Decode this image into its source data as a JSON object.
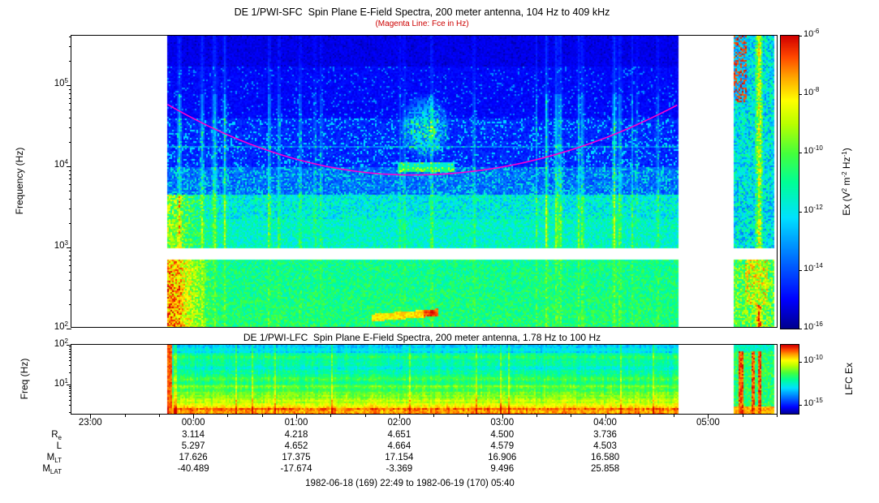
{
  "header": {
    "title": "DE 1/PWI-SFC  Spin Plane E-Field Spectra, 200 meter antenna, 104 Hz to 409 kHz",
    "subtitle": "(Magenta Line: Fce in Hz)"
  },
  "panel_sfc": {
    "ylabel": "Frequency (Hz)",
    "y_ticks": [
      {
        "base": "10",
        "exp": "5"
      },
      {
        "base": "10",
        "exp": "4"
      },
      {
        "base": "10",
        "exp": "3"
      },
      {
        "base": "10",
        "exp": "2"
      }
    ],
    "y_tick_fl": [
      5,
      4,
      3,
      2
    ],
    "colorbar": {
      "ticks": [
        {
          "base": "10",
          "exp": "-6"
        },
        {
          "base": "10",
          "exp": "-8"
        },
        {
          "base": "10",
          "exp": "-10"
        },
        {
          "base": "10",
          "exp": "-12"
        },
        {
          "base": "10",
          "exp": "-14"
        },
        {
          "base": "10",
          "exp": "-16"
        }
      ],
      "tick_exp": [
        -6,
        -8,
        -10,
        -12,
        -14,
        -16
      ],
      "label_segments": [
        {
          "t": "Ex (V"
        },
        {
          "t": "2",
          "sup": true
        },
        {
          "t": " m"
        },
        {
          "t": "-2",
          "sup": true
        },
        {
          "t": " Hz"
        },
        {
          "t": "-1",
          "sup": true
        },
        {
          "t": ")"
        }
      ]
    }
  },
  "panel_lfc": {
    "title": "DE 1/PWI-LFC  Spin Plane E-Field Spectra, 200 meter antenna, 1.78 Hz to 100 Hz",
    "ylabel": "Freq (Hz)",
    "y_ticks": [
      {
        "base": "10",
        "exp": "2"
      },
      {
        "base": "10",
        "exp": "1"
      }
    ],
    "y_tick_fl": [
      2,
      1
    ],
    "colorbar": {
      "ticks": [
        {
          "base": "10",
          "exp": "-10"
        },
        {
          "base": "10",
          "exp": "-15"
        }
      ],
      "tick_exp": [
        -10,
        -15
      ],
      "label_segments": [
        {
          "t": "LFC Ex"
        }
      ]
    }
  },
  "time_axis": {
    "labels": [
      "23:00",
      "00:00",
      "01:00",
      "02:00",
      "03:00",
      "04:00",
      "05:00"
    ],
    "start": "22:49",
    "end": "05:40"
  },
  "ephemeris": {
    "rows": [
      {
        "label": {
          "main": "R",
          "sub": "e"
        },
        "values": [
          "3.114",
          "4.218",
          "4.651",
          "4.500",
          "3.736"
        ]
      },
      {
        "label": {
          "main": "L",
          "sub": ""
        },
        "values": [
          "5.297",
          "4.652",
          "4.664",
          "4.579",
          "4.503"
        ]
      },
      {
        "label": {
          "main": "M",
          "sub": "LT"
        },
        "values": [
          "17.626",
          "17.375",
          "17.154",
          "16.906",
          "16.580"
        ]
      },
      {
        "label": {
          "main": "M",
          "sub": "LAT"
        },
        "values": [
          "-40.489",
          "-17.674",
          "-3.369",
          "9.496",
          "25.858"
        ]
      }
    ]
  },
  "footer": "1982-06-18 (169) 22:49 to 1982-06-19 (170) 05:40",
  "colors": {
    "fce_line": "#ff00cc",
    "subtitle_red": "#cc0000",
    "axis_black": "#000000"
  },
  "chart_data": [
    {
      "type": "heatmap",
      "name": "SFC spectrogram",
      "instrument": "DE 1/PWI-SFC",
      "title": "DE 1/PWI-SFC  Spin Plane E-Field Spectra, 200 meter antenna, 104 Hz to 409 kHz",
      "overlay_note": "Magenta Line: Fce in Hz",
      "x_start": "1982-06-18 22:49",
      "x_end": "1982-06-19 05:40",
      "x_ticks": [
        "23:00",
        "00:00",
        "01:00",
        "02:00",
        "03:00",
        "04:00",
        "05:00"
      ],
      "y_scale": "log",
      "y_min_hz": 104,
      "y_max_hz": 409000,
      "y_tick_hz": [
        100,
        1000,
        10000,
        100000
      ],
      "ylabel": "Frequency (Hz)",
      "value_label": "Ex (V^2 m^-2 Hz^-1)",
      "value_min": 1e-16,
      "value_max": 1e-06,
      "colorbar_tick_values": [
        1e-06,
        1e-08,
        1e-10,
        1e-12,
        1e-14,
        1e-16
      ],
      "data_coverage": {
        "data_start": "23:45",
        "data_end": "04:42",
        "detached_segment": [
          "05:15",
          "05:38"
        ]
      },
      "blanked_band_hz": [
        700,
        990
      ],
      "fce_line": {
        "f_start_hz": 58000,
        "f_min_hz": 7800,
        "min_frac": 0.48,
        "f_end_hz": 57000
      },
      "features": [
        "dark blue weak background above 10 kHz",
        "speckled cyan-green band 1-5 kHz across whole pass",
        "intense green emission 100-700 Hz with yellow-orange enhancement at data start 23:45",
        "broadband cyan-green burst near 02:15 reaching 30-60 kHz",
        "orange narrowband rising tone near 02:00 at about 150-200 Hz",
        "vertical cyan interference streaks, strongest near 03:20",
        "detached burst segment 05:15-05:38 with yellow column and red spots at top"
      ],
      "legend_position": "right colorbar",
      "grid": false
    },
    {
      "type": "heatmap",
      "name": "LFC spectrogram",
      "instrument": "DE 1/PWI-LFC",
      "title": "DE 1/PWI-LFC  Spin Plane E-Field Spectra, 200 meter antenna, 1.78 Hz to 100 Hz",
      "x_start": "1982-06-18 22:49",
      "x_end": "1982-06-19 05:40",
      "x_ticks": [
        "23:00",
        "00:00",
        "01:00",
        "02:00",
        "03:00",
        "04:00",
        "05:00"
      ],
      "y_scale": "log",
      "y_min_hz": 1.78,
      "y_max_hz": 100,
      "y_tick_hz": [
        10,
        100
      ],
      "ylabel": "Freq (Hz)",
      "value_label": "LFC Ex",
      "value_min": 1e-16,
      "value_max": 1e-08,
      "colorbar_tick_values": [
        1e-10,
        1e-15
      ],
      "data_coverage": {
        "data_start": "23:45",
        "data_end": "04:42",
        "detached_segment": [
          "05:15",
          "05:38"
        ]
      },
      "features": [
        "green banded emission across pass",
        "yellow-orange to red intensification below about 4 Hz",
        "red column at data start 23:45",
        "red vertical streaks in detached 05:15-05:38 segment"
      ],
      "legend_position": "right colorbar",
      "grid": false
    }
  ]
}
